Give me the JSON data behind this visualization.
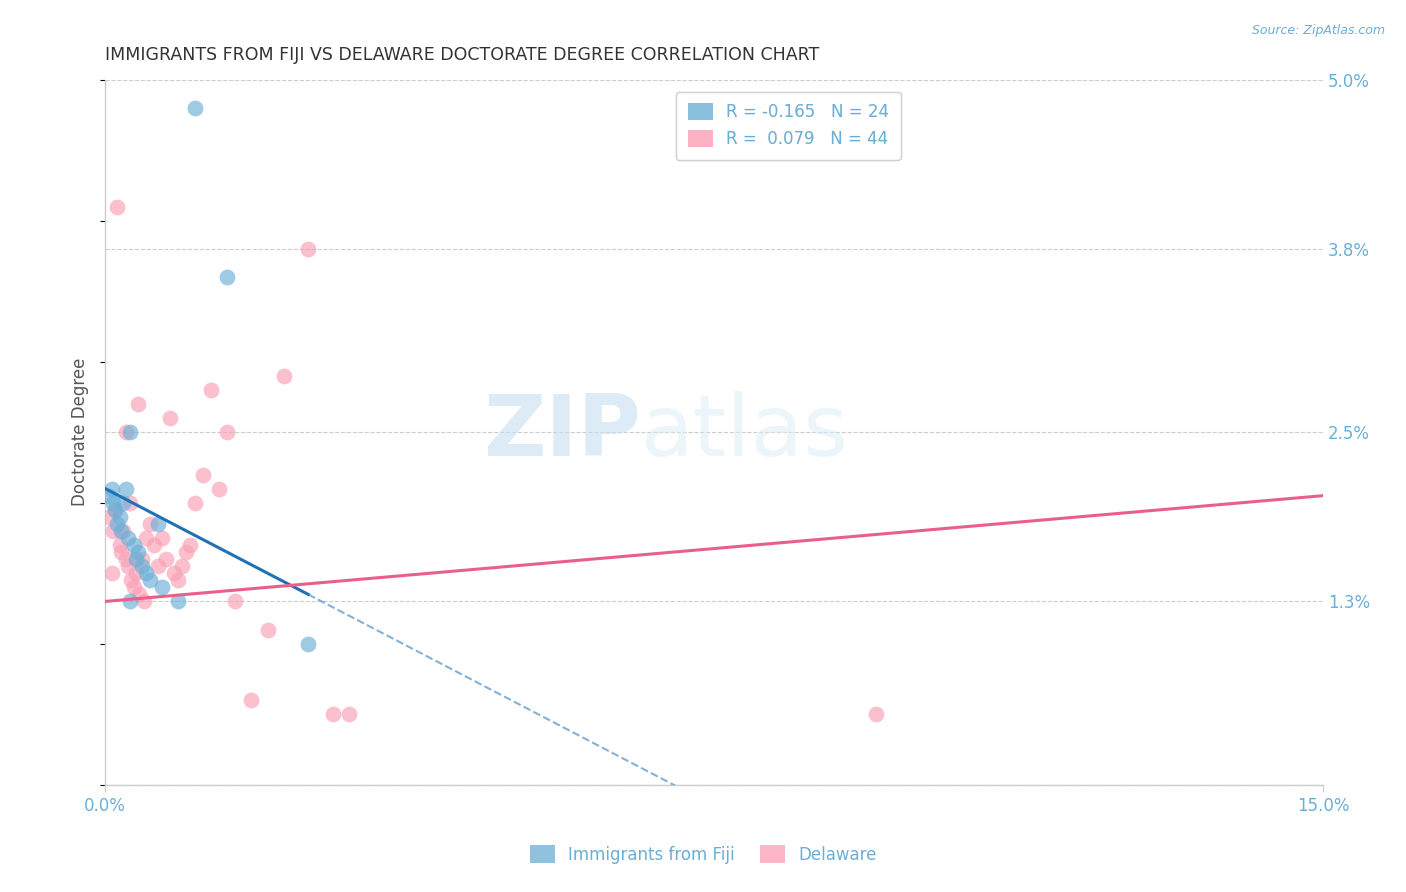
{
  "title": "IMMIGRANTS FROM FIJI VS DELAWARE DOCTORATE DEGREE CORRELATION CHART",
  "source": "Source: ZipAtlas.com",
  "ylabel": "Doctorate Degree",
  "watermark_zip": "ZIP",
  "watermark_atlas": "atlas",
  "xmin": 0.0,
  "xmax": 15.0,
  "ymin": 0.0,
  "ymax": 5.0,
  "yticks": [
    0.0,
    1.3,
    2.5,
    3.8,
    5.0
  ],
  "xticks": [
    0.0,
    15.0
  ],
  "xtick_labels": [
    "0.0%",
    "15.0%"
  ],
  "ytick_labels": [
    "",
    "1.3%",
    "2.5%",
    "3.8%",
    "5.0%"
  ],
  "legend_entries": [
    {
      "label_r": "R = -0.165",
      "label_n": "N = 24",
      "color": "#6baed6"
    },
    {
      "label_r": "R =  0.079",
      "label_n": "N = 44",
      "color": "#fa9fb5"
    }
  ],
  "legend_bottom_entries": [
    {
      "label": "Immigrants from Fiji",
      "color": "#6baed6"
    },
    {
      "label": "Delaware",
      "color": "#fa9fb5"
    }
  ],
  "series_fiji": {
    "color": "#6baed6",
    "x": [
      0.05,
      0.08,
      0.1,
      0.12,
      0.15,
      0.18,
      0.2,
      0.22,
      0.25,
      0.28,
      0.3,
      0.35,
      0.38,
      0.4,
      0.45,
      0.5,
      0.55,
      0.65,
      0.7,
      0.9,
      1.1,
      1.5,
      2.5,
      0.3
    ],
    "y": [
      2.05,
      2.1,
      2.0,
      1.95,
      1.85,
      1.9,
      1.8,
      2.0,
      2.1,
      1.75,
      2.5,
      1.7,
      1.6,
      1.65,
      1.55,
      1.5,
      1.45,
      1.85,
      1.4,
      1.3,
      4.8,
      3.6,
      1.0,
      1.3
    ]
  },
  "series_delaware": {
    "color": "#fa9fb5",
    "x": [
      0.05,
      0.08,
      0.1,
      0.12,
      0.15,
      0.18,
      0.2,
      0.22,
      0.25,
      0.28,
      0.3,
      0.32,
      0.35,
      0.38,
      0.4,
      0.42,
      0.45,
      0.48,
      0.5,
      0.55,
      0.6,
      0.65,
      0.7,
      0.75,
      0.8,
      0.85,
      0.9,
      0.95,
      1.0,
      1.05,
      1.1,
      1.2,
      1.3,
      1.4,
      1.5,
      1.6,
      1.8,
      2.0,
      2.2,
      2.5,
      2.8,
      3.0,
      9.5,
      0.25
    ],
    "y": [
      1.9,
      1.5,
      1.8,
      1.95,
      4.1,
      1.7,
      1.65,
      1.8,
      1.6,
      1.55,
      2.0,
      1.45,
      1.4,
      1.5,
      2.7,
      1.35,
      1.6,
      1.3,
      1.75,
      1.85,
      1.7,
      1.55,
      1.75,
      1.6,
      2.6,
      1.5,
      1.45,
      1.55,
      1.65,
      1.7,
      2.0,
      2.2,
      2.8,
      2.1,
      2.5,
      1.3,
      0.6,
      1.1,
      2.9,
      3.8,
      0.5,
      0.5,
      0.5,
      2.5
    ]
  },
  "trend_fiji_color": "#2171b5",
  "trend_delaware_color": "#e8608a",
  "background_color": "#ffffff",
  "grid_color": "#cccccc",
  "axis_color": "#cccccc",
  "title_color": "#333333",
  "tick_label_color": "#6baed6"
}
